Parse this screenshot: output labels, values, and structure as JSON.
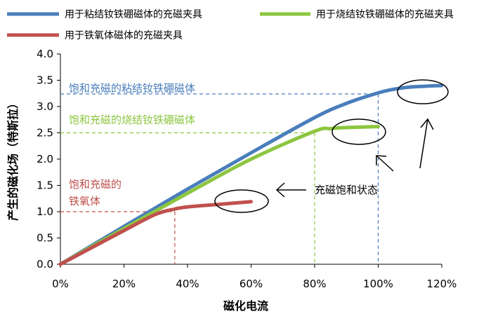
{
  "chart_data": {
    "type": "line",
    "xlabel": "磁化电流",
    "ylabel": "产生的磁化场（特斯拉）",
    "xlim": [
      0,
      120
    ],
    "ylim": [
      0,
      4.0
    ],
    "x_ticks": [
      0,
      20,
      40,
      60,
      80,
      100,
      120
    ],
    "x_tick_labels": [
      "0%",
      "20%",
      "40%",
      "60%",
      "80%",
      "100%",
      "120%"
    ],
    "y_ticks": [
      0,
      0.5,
      1.0,
      1.5,
      2.0,
      2.5,
      3.0,
      3.5,
      4.0
    ],
    "y_tick_labels": [
      "0.0",
      "0.5",
      "1.0",
      "1.5",
      "2.0",
      "2.5",
      "3.0",
      "3.5",
      "4.0"
    ],
    "grid": false,
    "legend_position": "top",
    "series": [
      {
        "name": "用于粘结钕铁硼磁体的充磁夹具",
        "color": "#4a7ebb",
        "x": [
          0,
          20,
          40,
          60,
          80,
          90,
          100,
          105,
          110,
          120
        ],
        "y": [
          0,
          0.72,
          1.43,
          2.12,
          2.79,
          3.06,
          3.26,
          3.33,
          3.37,
          3.4
        ]
      },
      {
        "name": "用于烧结钕铁硼磁体的充磁夹具",
        "color": "#8cc63f",
        "x": [
          0,
          20,
          40,
          60,
          80,
          85,
          90,
          95,
          100
        ],
        "y": [
          0,
          0.68,
          1.35,
          2.0,
          2.53,
          2.58,
          2.6,
          2.61,
          2.62
        ]
      },
      {
        "name": "用于铁氧体磁体的充磁夹具",
        "color": "#c0504d",
        "x": [
          0,
          10,
          20,
          30,
          36,
          40,
          50,
          60
        ],
        "y": [
          0,
          0.32,
          0.64,
          0.95,
          1.05,
          1.09,
          1.14,
          1.19
        ]
      }
    ],
    "annotations": {
      "bonded": {
        "text": "饱和充磁的粘结钕铁硼磁体",
        "color": "#4a7ebb",
        "x": 100,
        "y": 3.24
      },
      "sintered": {
        "text": "饱和充磁的烧结钕铁硼磁体",
        "color": "#8cc63f",
        "x": 80,
        "y": 2.5
      },
      "ferrite_line1": "饱和充磁的",
      "ferrite_line2": "铁氧体",
      "ferrite": {
        "color": "#c0504d",
        "x": 36,
        "y": 1.0
      },
      "saturation": "充磁饱和状态"
    }
  }
}
